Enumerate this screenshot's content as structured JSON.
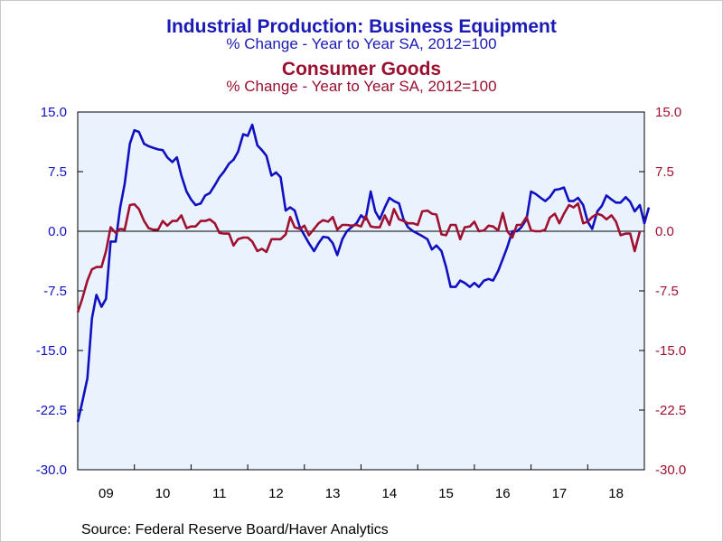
{
  "chart_data": {
    "type": "line",
    "titles": [
      {
        "text": "Industrial Production: Business Equipment",
        "color": "#1a1ab4"
      },
      {
        "text": "% Change - Year to Year     SA, 2012=100",
        "color": "#1a1ab4"
      },
      {
        "text": "Consumer Goods",
        "color": "#9a1030"
      },
      {
        "text": "% Change - Year to Year     SA, 2012=100",
        "color": "#9a1030"
      }
    ],
    "source": "Source:  Federal Reserve Board/Haver Analytics",
    "x_tick_labels": [
      "09",
      "10",
      "11",
      "12",
      "13",
      "14",
      "15",
      "16",
      "17",
      "18"
    ],
    "x_range": [
      2009.0,
      2019.0
    ],
    "y_range": [
      -30.0,
      15.0
    ],
    "y_ticks_left": [
      "15.0",
      "7.5",
      "0.0",
      "-7.5",
      "-15.0",
      "-22.5",
      "-30.0"
    ],
    "y_ticks_right": [
      "15.0",
      "7.5",
      "0.0",
      "-7.5",
      "-15.0",
      "-22.5",
      "-30.0"
    ],
    "zero_line": true,
    "plot_background": "#eaf2fd",
    "series": [
      {
        "axis": "left",
        "color": "#1010c0",
        "points": [
          [
            2009.0,
            -24.0
          ],
          [
            2009.08,
            -21.5
          ],
          [
            2009.17,
            -18.5
          ],
          [
            2009.25,
            -11.0
          ],
          [
            2009.33,
            -8.0
          ],
          [
            2009.42,
            -9.5
          ],
          [
            2009.5,
            -8.5
          ],
          [
            2009.58,
            -1.3
          ],
          [
            2009.67,
            -1.3
          ],
          [
            2009.75,
            3.0
          ],
          [
            2009.83,
            6.0
          ],
          [
            2009.92,
            11.0
          ],
          [
            2010.0,
            12.7
          ],
          [
            2010.08,
            12.5
          ],
          [
            2010.17,
            11.0
          ],
          [
            2010.25,
            10.7
          ],
          [
            2010.33,
            10.5
          ],
          [
            2010.42,
            10.3
          ],
          [
            2010.5,
            10.2
          ],
          [
            2010.58,
            9.3
          ],
          [
            2010.67,
            8.7
          ],
          [
            2010.75,
            9.3
          ],
          [
            2010.83,
            7.0
          ],
          [
            2010.92,
            5.0
          ],
          [
            2011.0,
            4.0
          ],
          [
            2011.08,
            3.3
          ],
          [
            2011.17,
            3.5
          ],
          [
            2011.25,
            4.5
          ],
          [
            2011.33,
            4.8
          ],
          [
            2011.42,
            5.8
          ],
          [
            2011.5,
            6.8
          ],
          [
            2011.58,
            7.5
          ],
          [
            2011.67,
            8.5
          ],
          [
            2011.75,
            9.0
          ],
          [
            2011.83,
            10.0
          ],
          [
            2011.92,
            12.2
          ],
          [
            2012.0,
            12.0
          ],
          [
            2012.08,
            13.4
          ],
          [
            2012.17,
            10.8
          ],
          [
            2012.25,
            10.2
          ],
          [
            2012.33,
            9.5
          ],
          [
            2012.42,
            7.0
          ],
          [
            2012.5,
            7.4
          ],
          [
            2012.58,
            6.8
          ],
          [
            2012.67,
            2.6
          ],
          [
            2012.75,
            3.0
          ],
          [
            2012.83,
            2.6
          ],
          [
            2012.92,
            0.5
          ],
          [
            2013.0,
            -0.5
          ],
          [
            2013.08,
            -1.5
          ],
          [
            2013.17,
            -2.5
          ],
          [
            2013.25,
            -1.5
          ],
          [
            2013.33,
            -0.7
          ],
          [
            2013.42,
            -0.8
          ],
          [
            2013.5,
            -1.5
          ],
          [
            2013.58,
            -3.0
          ],
          [
            2013.67,
            -1.0
          ],
          [
            2013.75,
            0.0
          ],
          [
            2013.83,
            0.5
          ],
          [
            2013.92,
            1.0
          ],
          [
            2014.0,
            2.0
          ],
          [
            2014.08,
            1.5
          ],
          [
            2014.17,
            5.0
          ],
          [
            2014.25,
            2.5
          ],
          [
            2014.33,
            1.5
          ],
          [
            2014.42,
            3.0
          ],
          [
            2014.5,
            4.2
          ],
          [
            2014.58,
            3.8
          ],
          [
            2014.67,
            3.5
          ],
          [
            2014.75,
            1.5
          ],
          [
            2014.83,
            0.5
          ],
          [
            2014.92,
            0.0
          ],
          [
            2015.0,
            -0.3
          ],
          [
            2015.08,
            -0.6
          ],
          [
            2015.17,
            -1.0
          ],
          [
            2015.25,
            -2.3
          ],
          [
            2015.33,
            -1.8
          ],
          [
            2015.42,
            -2.5
          ],
          [
            2015.5,
            -4.5
          ],
          [
            2015.58,
            -7.0
          ],
          [
            2015.67,
            -7.0
          ],
          [
            2015.75,
            -6.2
          ],
          [
            2015.83,
            -6.5
          ],
          [
            2015.92,
            -7.0
          ],
          [
            2016.0,
            -6.5
          ],
          [
            2016.08,
            -7.0
          ],
          [
            2016.17,
            -6.2
          ],
          [
            2016.25,
            -6.0
          ],
          [
            2016.33,
            -6.2
          ],
          [
            2016.42,
            -5.0
          ],
          [
            2016.5,
            -3.5
          ],
          [
            2016.58,
            -2.0
          ],
          [
            2016.67,
            0.0
          ],
          [
            2016.75,
            0.0
          ],
          [
            2016.83,
            0.5
          ],
          [
            2016.92,
            1.5
          ],
          [
            2017.0,
            5.0
          ],
          [
            2017.08,
            4.7
          ],
          [
            2017.17,
            4.2
          ],
          [
            2017.25,
            3.8
          ],
          [
            2017.33,
            4.3
          ],
          [
            2017.42,
            5.2
          ],
          [
            2017.5,
            5.3
          ],
          [
            2017.58,
            5.5
          ],
          [
            2017.67,
            3.8
          ],
          [
            2017.75,
            3.8
          ],
          [
            2017.83,
            4.2
          ],
          [
            2017.92,
            3.3
          ],
          [
            2018.0,
            1.2
          ],
          [
            2018.08,
            0.3
          ],
          [
            2018.17,
            2.5
          ],
          [
            2018.25,
            3.2
          ],
          [
            2018.33,
            4.5
          ],
          [
            2018.42,
            4.0
          ],
          [
            2018.5,
            3.6
          ],
          [
            2018.58,
            3.6
          ],
          [
            2018.67,
            4.3
          ],
          [
            2018.75,
            3.7
          ],
          [
            2018.83,
            2.5
          ],
          [
            2018.92,
            3.3
          ],
          [
            2019.0,
            1.0
          ],
          [
            2019.08,
            3.0
          ]
        ]
      },
      {
        "axis": "right",
        "color": "#a01030",
        "points": [
          [
            2009.0,
            -10.2
          ],
          [
            2009.08,
            -8.5
          ],
          [
            2009.17,
            -6.2
          ],
          [
            2009.25,
            -4.8
          ],
          [
            2009.33,
            -4.5
          ],
          [
            2009.42,
            -4.5
          ],
          [
            2009.5,
            -2.5
          ],
          [
            2009.58,
            0.5
          ],
          [
            2009.67,
            -0.2
          ],
          [
            2009.75,
            0.3
          ],
          [
            2009.83,
            0.2
          ],
          [
            2009.92,
            3.3
          ],
          [
            2010.0,
            3.4
          ],
          [
            2010.08,
            2.8
          ],
          [
            2010.17,
            1.3
          ],
          [
            2010.25,
            0.4
          ],
          [
            2010.33,
            0.2
          ],
          [
            2010.42,
            0.2
          ],
          [
            2010.5,
            1.3
          ],
          [
            2010.58,
            0.7
          ],
          [
            2010.67,
            1.3
          ],
          [
            2010.75,
            1.3
          ],
          [
            2010.83,
            2.0
          ],
          [
            2010.92,
            0.4
          ],
          [
            2011.0,
            0.6
          ],
          [
            2011.08,
            0.6
          ],
          [
            2011.17,
            1.3
          ],
          [
            2011.25,
            1.3
          ],
          [
            2011.33,
            1.5
          ],
          [
            2011.42,
            1.0
          ],
          [
            2011.5,
            -0.2
          ],
          [
            2011.58,
            -0.3
          ],
          [
            2011.67,
            -0.3
          ],
          [
            2011.75,
            -1.8
          ],
          [
            2011.83,
            -1.0
          ],
          [
            2011.92,
            -0.8
          ],
          [
            2012.0,
            -0.8
          ],
          [
            2012.08,
            -1.3
          ],
          [
            2012.17,
            -2.5
          ],
          [
            2012.25,
            -2.2
          ],
          [
            2012.33,
            -2.6
          ],
          [
            2012.42,
            -1.0
          ],
          [
            2012.5,
            -1.0
          ],
          [
            2012.58,
            -1.0
          ],
          [
            2012.67,
            -0.4
          ],
          [
            2012.75,
            1.8
          ],
          [
            2012.83,
            0.5
          ],
          [
            2012.92,
            0.3
          ],
          [
            2013.0,
            0.7
          ],
          [
            2013.08,
            -0.5
          ],
          [
            2013.17,
            0.3
          ],
          [
            2013.25,
            1.0
          ],
          [
            2013.33,
            1.4
          ],
          [
            2013.42,
            1.2
          ],
          [
            2013.5,
            1.8
          ],
          [
            2013.58,
            0.2
          ],
          [
            2013.67,
            0.8
          ],
          [
            2013.75,
            0.8
          ],
          [
            2013.83,
            0.7
          ],
          [
            2013.92,
            0.8
          ],
          [
            2014.0,
            0.6
          ],
          [
            2014.08,
            1.9
          ],
          [
            2014.17,
            0.6
          ],
          [
            2014.25,
            0.5
          ],
          [
            2014.33,
            0.5
          ],
          [
            2014.42,
            2.0
          ],
          [
            2014.5,
            0.8
          ],
          [
            2014.58,
            2.8
          ],
          [
            2014.67,
            1.5
          ],
          [
            2014.75,
            1.3
          ],
          [
            2014.83,
            1.0
          ],
          [
            2014.92,
            1.0
          ],
          [
            2015.0,
            0.8
          ],
          [
            2015.08,
            2.5
          ],
          [
            2015.17,
            2.6
          ],
          [
            2015.25,
            2.2
          ],
          [
            2015.33,
            2.1
          ],
          [
            2015.42,
            -0.4
          ],
          [
            2015.5,
            -0.5
          ],
          [
            2015.58,
            0.8
          ],
          [
            2015.67,
            0.8
          ],
          [
            2015.75,
            -1.0
          ],
          [
            2015.83,
            0.5
          ],
          [
            2015.92,
            0.6
          ],
          [
            2016.0,
            1.2
          ],
          [
            2016.08,
            0.0
          ],
          [
            2016.17,
            0.1
          ],
          [
            2016.25,
            0.7
          ],
          [
            2016.33,
            0.6
          ],
          [
            2016.42,
            0.1
          ],
          [
            2016.5,
            2.3
          ],
          [
            2016.58,
            0.0
          ],
          [
            2016.67,
            -0.8
          ],
          [
            2016.75,
            0.8
          ],
          [
            2016.83,
            0.8
          ],
          [
            2016.92,
            1.8
          ],
          [
            2017.0,
            0.1
          ],
          [
            2017.08,
            0.0
          ],
          [
            2017.17,
            0.0
          ],
          [
            2017.25,
            0.2
          ],
          [
            2017.33,
            1.7
          ],
          [
            2017.42,
            2.2
          ],
          [
            2017.5,
            1.0
          ],
          [
            2017.58,
            2.2
          ],
          [
            2017.67,
            3.3
          ],
          [
            2017.75,
            3.0
          ],
          [
            2017.83,
            3.5
          ],
          [
            2017.92,
            1.0
          ],
          [
            2018.0,
            1.2
          ],
          [
            2018.08,
            1.8
          ],
          [
            2018.17,
            2.2
          ],
          [
            2018.25,
            2.0
          ],
          [
            2018.33,
            1.5
          ],
          [
            2018.42,
            2.0
          ],
          [
            2018.5,
            1.2
          ],
          [
            2018.58,
            -0.5
          ],
          [
            2018.67,
            -0.3
          ],
          [
            2018.75,
            -0.3
          ],
          [
            2018.83,
            -2.5
          ],
          [
            2018.92,
            0.0
          ]
        ]
      }
    ]
  }
}
